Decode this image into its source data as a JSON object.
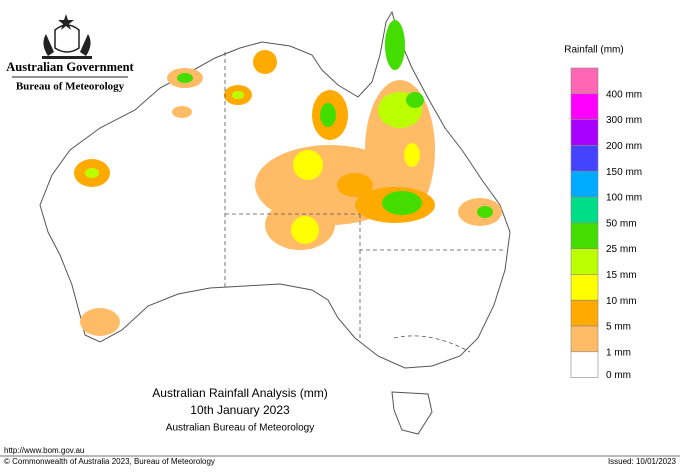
{
  "header": {
    "government": "Australian Government",
    "bureau": "Bureau of Meteorology"
  },
  "legend": {
    "title": "Rainfall (mm)",
    "items": [
      {
        "label": "400 mm",
        "color": "#ff66b3"
      },
      {
        "label": "300 mm",
        "color": "#ff00ff"
      },
      {
        "label": "200 mm",
        "color": "#aa00ff"
      },
      {
        "label": "150 mm",
        "color": "#4444ff"
      },
      {
        "label": "100 mm",
        "color": "#00aaff"
      },
      {
        "label": "50 mm",
        "color": "#00dd88"
      },
      {
        "label": "25 mm",
        "color": "#44dd00"
      },
      {
        "label": "15 mm",
        "color": "#bbff00"
      },
      {
        "label": "10 mm",
        "color": "#ffff00"
      },
      {
        "label": "5 mm",
        "color": "#ffaa00"
      },
      {
        "label": "1 mm",
        "color": "#ffbb66"
      },
      {
        "label": "0 mm",
        "color": "#ffffff"
      }
    ]
  },
  "caption": {
    "title": "Australian Rainfall Analysis (mm)",
    "date": "10th January 2023",
    "source": "Australian Bureau of Meteorology"
  },
  "footer": {
    "url": "http://www.bom.gov.au",
    "copyright": "© Commonwealth of Australia 2023, Bureau of Meteorology",
    "issued": "Issued: 10/01/2023"
  }
}
